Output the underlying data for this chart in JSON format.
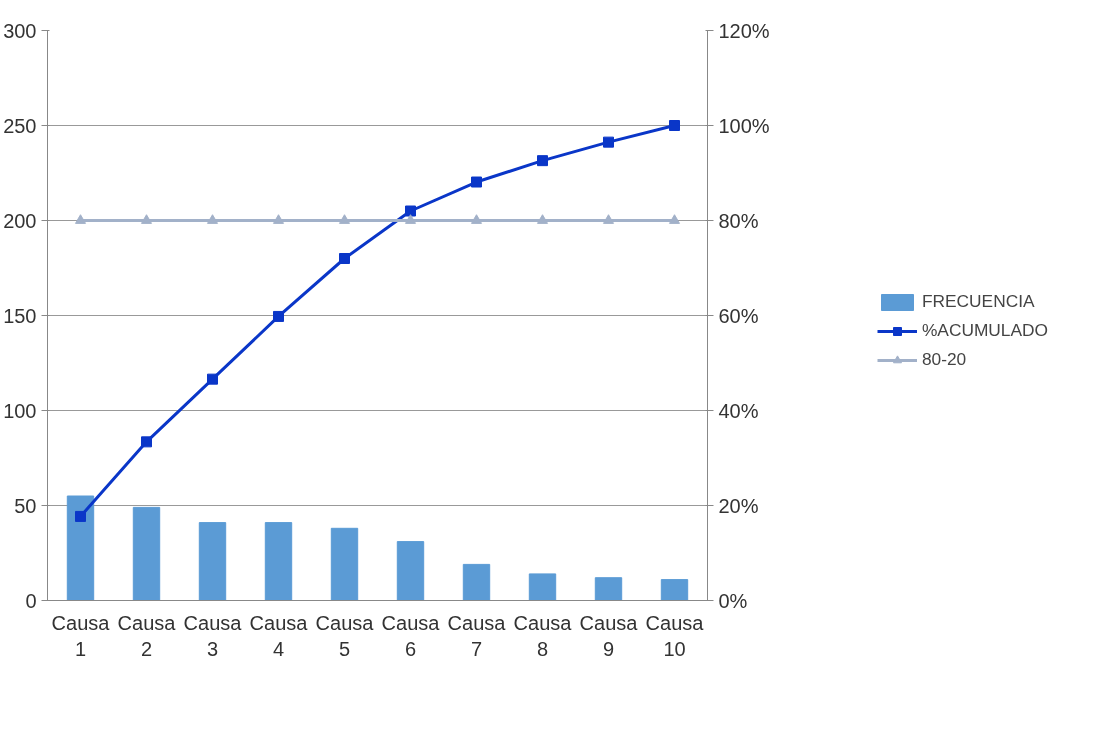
{
  "chart_data": {
    "type": "bar",
    "categories": [
      "Causa 1",
      "Causa 2",
      "Causa 3",
      "Causa 4",
      "Causa 5",
      "Causa 6",
      "Causa 7",
      "Causa 8",
      "Causa 9",
      "Causa 10"
    ],
    "series": [
      {
        "name": "FRECUENCIA",
        "color": "#5b9bd5",
        "values": [
          55,
          49,
          41,
          41,
          38,
          31,
          19,
          14,
          12,
          11
        ]
      },
      {
        "name": "%ACUMULADO",
        "type": "line",
        "axis": "y2",
        "color": "#0a36c8",
        "marker": "square",
        "values": [
          17.7,
          33.4,
          46.6,
          59.8,
          72.0,
          82.0,
          88.1,
          92.6,
          96.5,
          100
        ]
      },
      {
        "name": "80-20",
        "type": "line",
        "axis": "y2",
        "color": "#a2b1c9",
        "marker": "triangle",
        "values": [
          80,
          80,
          80,
          80,
          80,
          80,
          80,
          80,
          80,
          80
        ]
      }
    ],
    "ylim": [
      0,
      300
    ],
    "yticks": [
      0,
      50,
      100,
      150,
      200,
      250,
      300
    ],
    "y2lim": [
      0,
      120
    ],
    "y2ticks": [
      {
        "value": 0,
        "label": "0%"
      },
      {
        "value": 20,
        "label": "20%"
      },
      {
        "value": 40,
        "label": "40%"
      },
      {
        "value": 60,
        "label": "60%"
      },
      {
        "value": 80,
        "label": "80%"
      },
      {
        "value": 100,
        "label": "100%"
      },
      {
        "value": 120,
        "label": "120%"
      }
    ],
    "grid": "y",
    "legend": "right"
  }
}
